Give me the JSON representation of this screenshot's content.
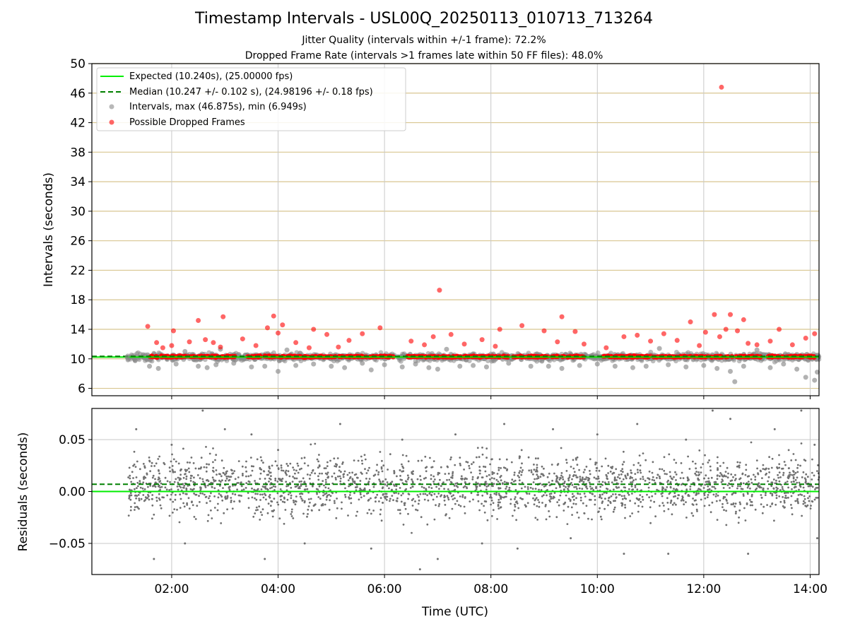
{
  "figure": {
    "title": "Timestamp Intervals - USL00Q_20250113_010713_713264",
    "subtitle_1": "Jitter Quality (intervals within +/-1 frame): 72.2%",
    "subtitle_2": "Dropped Frame Rate (intervals >1 frames late within 50 FF files): 48.0%"
  },
  "colors": {
    "expected": "#00ee00",
    "median": "#008000",
    "intervals": "#888888",
    "dropped": "#ff0000",
    "hgrid": "#d8c690",
    "vgrid": "#c8c8c8",
    "residuals": "#707070"
  },
  "chart_data": [
    {
      "type": "scatter",
      "ylabel": "Intervals (seconds)",
      "xlabel": "",
      "xlim": [
        "00:30",
        "14:10"
      ],
      "ylim": [
        5,
        50
      ],
      "yticks": [
        6,
        10,
        14,
        18,
        22,
        26,
        30,
        34,
        38,
        42,
        46,
        50
      ],
      "xticks": [
        "02:00",
        "04:00",
        "06:00",
        "08:00",
        "10:00",
        "12:00",
        "14:00"
      ],
      "grid": true,
      "legend_position": "top-left",
      "legend": [
        "Expected (10.240s), (25.00000 fps)",
        "Median (10.247 +/- 0.102 s), (24.98196 +/- 0.18 fps)",
        "Intervals, max (46.875s), min (6.949s)",
        "Possible Dropped Frames"
      ],
      "expected_interval": 10.24,
      "median_interval": 10.247,
      "max_interval": 46.875,
      "min_interval": 6.949,
      "series": [
        {
          "name": "Intervals, max (46.875s), min (6.949s)",
          "points": [
            [
              "01:10",
              10.2
            ],
            [
              "01:35",
              9.0
            ],
            [
              "01:45",
              8.7
            ],
            [
              "02:05",
              9.3
            ],
            [
              "02:15",
              11.0
            ],
            [
              "02:30",
              9.0
            ],
            [
              "02:40",
              8.8
            ],
            [
              "02:50",
              9.2
            ],
            [
              "02:55",
              11.3
            ],
            [
              "03:10",
              9.4
            ],
            [
              "03:30",
              8.9
            ],
            [
              "03:45",
              9.0
            ],
            [
              "04:00",
              8.3
            ],
            [
              "04:10",
              11.2
            ],
            [
              "04:20",
              9.1
            ],
            [
              "04:40",
              9.3
            ],
            [
              "05:00",
              9.0
            ],
            [
              "05:15",
              8.8
            ],
            [
              "05:35",
              9.4
            ],
            [
              "05:45",
              8.5
            ],
            [
              "06:00",
              9.2
            ],
            [
              "06:20",
              8.9
            ],
            [
              "06:35",
              9.3
            ],
            [
              "06:50",
              8.8
            ],
            [
              "07:00",
              8.6
            ],
            [
              "07:10",
              11.3
            ],
            [
              "07:25",
              9.0
            ],
            [
              "07:40",
              9.1
            ],
            [
              "07:55",
              8.9
            ],
            [
              "08:20",
              9.4
            ],
            [
              "08:45",
              9.0
            ],
            [
              "09:05",
              9.0
            ],
            [
              "09:20",
              8.7
            ],
            [
              "09:40",
              9.1
            ],
            [
              "10:00",
              9.3
            ],
            [
              "10:20",
              9.0
            ],
            [
              "10:40",
              8.8
            ],
            [
              "10:55",
              9.0
            ],
            [
              "11:10",
              11.4
            ],
            [
              "11:20",
              9.2
            ],
            [
              "11:40",
              8.9
            ],
            [
              "12:00",
              9.1
            ],
            [
              "12:15",
              8.7
            ],
            [
              "12:30",
              8.3
            ],
            [
              "12:35",
              6.9
            ],
            [
              "12:45",
              9.0
            ],
            [
              "13:00",
              11.2
            ],
            [
              "13:15",
              8.8
            ],
            [
              "13:30",
              9.3
            ],
            [
              "13:45",
              8.6
            ],
            [
              "13:55",
              7.5
            ],
            [
              "14:05",
              7.1
            ],
            [
              "14:08",
              8.2
            ]
          ]
        },
        {
          "name": "Possible Dropped Frames",
          "points": [
            [
              "01:33",
              14.4
            ],
            [
              "01:43",
              12.2
            ],
            [
              "01:50",
              11.5
            ],
            [
              "02:00",
              11.8
            ],
            [
              "02:02",
              13.8
            ],
            [
              "02:20",
              12.3
            ],
            [
              "02:30",
              15.2
            ],
            [
              "02:38",
              12.6
            ],
            [
              "02:47",
              12.2
            ],
            [
              "02:55",
              11.6
            ],
            [
              "02:58",
              15.7
            ],
            [
              "03:20",
              12.7
            ],
            [
              "03:35",
              11.8
            ],
            [
              "03:48",
              14.2
            ],
            [
              "03:55",
              15.8
            ],
            [
              "04:00",
              13.5
            ],
            [
              "04:05",
              14.6
            ],
            [
              "04:20",
              12.2
            ],
            [
              "04:35",
              11.5
            ],
            [
              "04:40",
              14.0
            ],
            [
              "04:55",
              13.3
            ],
            [
              "05:08",
              11.6
            ],
            [
              "05:20",
              12.5
            ],
            [
              "05:35",
              13.4
            ],
            [
              "05:55",
              14.2
            ],
            [
              "06:30",
              12.4
            ],
            [
              "06:45",
              11.9
            ],
            [
              "06:55",
              13.0
            ],
            [
              "07:02",
              19.3
            ],
            [
              "07:15",
              13.3
            ],
            [
              "07:30",
              12.0
            ],
            [
              "07:50",
              12.6
            ],
            [
              "08:05",
              11.7
            ],
            [
              "08:10",
              14.0
            ],
            [
              "08:35",
              14.5
            ],
            [
              "09:00",
              13.8
            ],
            [
              "09:15",
              12.3
            ],
            [
              "09:20",
              15.7
            ],
            [
              "09:35",
              13.7
            ],
            [
              "09:45",
              12.0
            ],
            [
              "10:10",
              11.5
            ],
            [
              "10:30",
              13.0
            ],
            [
              "10:45",
              13.2
            ],
            [
              "11:00",
              12.4
            ],
            [
              "11:15",
              13.4
            ],
            [
              "11:30",
              12.5
            ],
            [
              "11:45",
              15.0
            ],
            [
              "11:55",
              11.8
            ],
            [
              "12:02",
              13.6
            ],
            [
              "12:12",
              16.0
            ],
            [
              "12:18",
              13.0
            ],
            [
              "12:25",
              14.0
            ],
            [
              "12:30",
              16.0
            ],
            [
              "12:38",
              13.8
            ],
            [
              "12:45",
              15.3
            ],
            [
              "12:50",
              12.1
            ],
            [
              "13:00",
              11.9
            ],
            [
              "13:15",
              12.4
            ],
            [
              "13:25",
              14.0
            ],
            [
              "13:40",
              11.9
            ],
            [
              "13:55",
              12.8
            ],
            [
              "14:05",
              13.4
            ],
            [
              "12:20",
              46.8
            ]
          ]
        }
      ]
    },
    {
      "type": "scatter",
      "ylabel": "Residuals (seconds)",
      "xlabel": "Time (UTC)",
      "xlim": [
        "00:30",
        "14:10"
      ],
      "ylim": [
        -0.08,
        0.08
      ],
      "yticks": [
        -0.05,
        0.0,
        0.05
      ],
      "ytick_labels": [
        "−0.05",
        "0.00",
        "0.05"
      ],
      "xticks": [
        "02:00",
        "04:00",
        "06:00",
        "08:00",
        "10:00",
        "12:00",
        "14:00"
      ],
      "grid": true,
      "expected_residual": 0.0,
      "median_residual": 0.007,
      "series": [
        {
          "name": "Residuals",
          "points": [
            [
              "01:20",
              0.06
            ],
            [
              "01:40",
              -0.065
            ],
            [
              "02:00",
              0.045
            ],
            [
              "02:15",
              -0.05
            ],
            [
              "02:35",
              0.078
            ],
            [
              "03:00",
              0.06
            ],
            [
              "03:30",
              0.055
            ],
            [
              "03:45",
              -0.065
            ],
            [
              "04:00",
              0.04
            ],
            [
              "04:30",
              -0.05
            ],
            [
              "05:10",
              0.065
            ],
            [
              "05:45",
              -0.055
            ],
            [
              "06:20",
              0.05
            ],
            [
              "06:40",
              -0.075
            ],
            [
              "07:00",
              -0.065
            ],
            [
              "07:20",
              0.055
            ],
            [
              "07:50",
              -0.05
            ],
            [
              "08:15",
              0.065
            ],
            [
              "08:30",
              -0.055
            ],
            [
              "09:10",
              0.06
            ],
            [
              "09:30",
              -0.045
            ],
            [
              "10:00",
              0.055
            ],
            [
              "10:30",
              -0.06
            ],
            [
              "10:45",
              0.065
            ],
            [
              "11:20",
              -0.06
            ],
            [
              "11:40",
              0.05
            ],
            [
              "12:10",
              0.078
            ],
            [
              "12:30",
              0.07
            ],
            [
              "12:50",
              -0.06
            ],
            [
              "13:20",
              0.06
            ],
            [
              "13:50",
              0.078
            ],
            [
              "14:05",
              0.045
            ],
            [
              "14:08",
              -0.045
            ]
          ]
        }
      ]
    }
  ]
}
